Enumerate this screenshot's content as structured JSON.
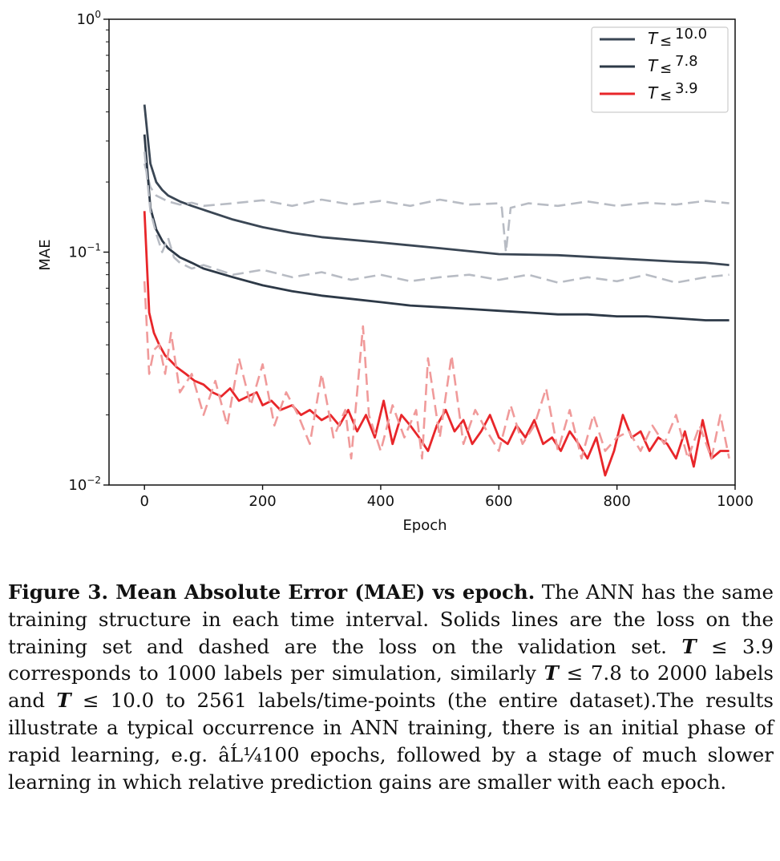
{
  "chart_data": {
    "type": "line",
    "xlabel": "Epoch",
    "ylabel": "MAE",
    "xlim": [
      -60,
      1000
    ],
    "ylim": [
      0.01,
      1.0
    ],
    "yscale": "log",
    "xticks": [
      0,
      200,
      400,
      600,
      800,
      1000
    ],
    "xtick_labels": [
      "0",
      "200",
      "400",
      "600",
      "800",
      "1000"
    ],
    "yticks": [
      {
        "value": 1.0,
        "base": "10",
        "exp": "0"
      },
      {
        "value": 0.1,
        "base": "10",
        "exp": "−1"
      },
      {
        "value": 0.01,
        "base": "10",
        "exp": "−2"
      }
    ],
    "legend": {
      "placement": "top-right",
      "prefix": "T",
      "symbol": "≤",
      "entries": [
        {
          "value": "10.0",
          "color": "#3a4654"
        },
        {
          "value": "7.8",
          "color": "#2d3947"
        },
        {
          "value": "3.9",
          "color": "#e8262a"
        }
      ]
    },
    "series": [
      {
        "style": "solid",
        "color": "#3a4654",
        "x": [
          0,
          10,
          20,
          30,
          40,
          60,
          80,
          100,
          150,
          200,
          250,
          300,
          400,
          500,
          600,
          700,
          800,
          900,
          950,
          990
        ],
        "y": [
          0.43,
          0.24,
          0.2,
          0.185,
          0.175,
          0.165,
          0.158,
          0.152,
          0.138,
          0.128,
          0.121,
          0.116,
          0.11,
          0.104,
          0.098,
          0.097,
          0.094,
          0.091,
          0.09,
          0.088
        ]
      },
      {
        "style": "dashed",
        "color": "#b8bcc4",
        "x": [
          0,
          10,
          20,
          40,
          60,
          80,
          100,
          150,
          200,
          250,
          300,
          350,
          400,
          450,
          500,
          550,
          600,
          605,
          612,
          620,
          650,
          700,
          750,
          800,
          850,
          900,
          950,
          990
        ],
        "y": [
          0.24,
          0.19,
          0.175,
          0.165,
          0.16,
          0.163,
          0.158,
          0.162,
          0.167,
          0.158,
          0.168,
          0.16,
          0.166,
          0.158,
          0.168,
          0.16,
          0.162,
          0.155,
          0.1,
          0.155,
          0.162,
          0.158,
          0.165,
          0.158,
          0.163,
          0.16,
          0.166,
          0.162
        ]
      },
      {
        "style": "solid",
        "color": "#2d3947",
        "x": [
          0,
          10,
          20,
          30,
          40,
          60,
          80,
          100,
          150,
          200,
          250,
          300,
          350,
          400,
          450,
          500,
          550,
          600,
          650,
          700,
          750,
          800,
          850,
          900,
          950,
          990
        ],
        "y": [
          0.32,
          0.155,
          0.125,
          0.112,
          0.104,
          0.095,
          0.09,
          0.085,
          0.078,
          0.072,
          0.068,
          0.065,
          0.063,
          0.061,
          0.059,
          0.058,
          0.057,
          0.056,
          0.055,
          0.054,
          0.054,
          0.053,
          0.053,
          0.052,
          0.051,
          0.051
        ]
      },
      {
        "style": "dashed",
        "color": "#b8bcc4",
        "x": [
          0,
          10,
          20,
          30,
          40,
          50,
          60,
          80,
          100,
          150,
          200,
          250,
          300,
          350,
          400,
          450,
          500,
          550,
          600,
          650,
          700,
          750,
          800,
          850,
          900,
          950,
          990
        ],
        "y": [
          0.27,
          0.15,
          0.12,
          0.1,
          0.115,
          0.095,
          0.09,
          0.085,
          0.088,
          0.08,
          0.084,
          0.078,
          0.082,
          0.076,
          0.08,
          0.075,
          0.078,
          0.08,
          0.076,
          0.08,
          0.074,
          0.078,
          0.075,
          0.08,
          0.074,
          0.078,
          0.08
        ]
      },
      {
        "style": "solid",
        "color": "#e8262a",
        "x": [
          0,
          8,
          16,
          25,
          35,
          45,
          55,
          70,
          85,
          100,
          115,
          130,
          145,
          160,
          175,
          190,
          200,
          215,
          230,
          250,
          265,
          280,
          300,
          315,
          330,
          345,
          360,
          375,
          390,
          405,
          420,
          435,
          450,
          465,
          480,
          495,
          510,
          525,
          540,
          555,
          570,
          585,
          600,
          615,
          630,
          645,
          660,
          675,
          690,
          705,
          720,
          735,
          750,
          765,
          780,
          795,
          810,
          825,
          840,
          855,
          870,
          885,
          900,
          915,
          930,
          945,
          960,
          975,
          990
        ],
        "y": [
          0.15,
          0.055,
          0.045,
          0.04,
          0.036,
          0.034,
          0.032,
          0.03,
          0.028,
          0.027,
          0.025,
          0.024,
          0.026,
          0.023,
          0.024,
          0.025,
          0.022,
          0.023,
          0.021,
          0.022,
          0.02,
          0.021,
          0.019,
          0.02,
          0.018,
          0.021,
          0.017,
          0.02,
          0.016,
          0.023,
          0.015,
          0.02,
          0.018,
          0.016,
          0.014,
          0.018,
          0.021,
          0.017,
          0.019,
          0.015,
          0.017,
          0.02,
          0.016,
          0.015,
          0.018,
          0.016,
          0.019,
          0.015,
          0.016,
          0.014,
          0.017,
          0.015,
          0.013,
          0.016,
          0.011,
          0.014,
          0.02,
          0.016,
          0.017,
          0.014,
          0.016,
          0.015,
          0.013,
          0.017,
          0.012,
          0.019,
          0.013,
          0.014,
          0.014
        ]
      },
      {
        "style": "dashed",
        "color": "#f09a9a",
        "x": [
          0,
          8,
          16,
          25,
          35,
          45,
          60,
          80,
          100,
          120,
          140,
          160,
          180,
          200,
          220,
          240,
          260,
          280,
          300,
          320,
          340,
          350,
          360,
          370,
          380,
          400,
          420,
          440,
          460,
          470,
          480,
          500,
          520,
          540,
          560,
          580,
          600,
          620,
          640,
          660,
          680,
          700,
          720,
          740,
          760,
          780,
          800,
          820,
          840,
          860,
          880,
          900,
          920,
          940,
          960,
          975,
          990
        ],
        "y": [
          0.075,
          0.03,
          0.038,
          0.04,
          0.03,
          0.045,
          0.025,
          0.03,
          0.02,
          0.028,
          0.018,
          0.035,
          0.022,
          0.033,
          0.018,
          0.025,
          0.02,
          0.015,
          0.03,
          0.016,
          0.021,
          0.013,
          0.025,
          0.048,
          0.02,
          0.014,
          0.022,
          0.016,
          0.021,
          0.013,
          0.035,
          0.016,
          0.036,
          0.015,
          0.021,
          0.017,
          0.014,
          0.022,
          0.015,
          0.018,
          0.026,
          0.014,
          0.021,
          0.013,
          0.02,
          0.014,
          0.016,
          0.017,
          0.014,
          0.018,
          0.015,
          0.02,
          0.013,
          0.018,
          0.013,
          0.02,
          0.013
        ]
      }
    ]
  },
  "caption": {
    "bold": "Figure 3. Mean Absolute Error (MAE) vs epoch.",
    "p1": " The ANN has the same training structure in each time interval. Solids lines are the loss on the training set and dashed are the loss on the validation set. ",
    "t1": "T",
    "p2": " ≤ 3.9 corresponds to 1000 labels per simulation, similarly ",
    "t2": "T",
    "p3": " ≤ 7.8 to 2000 labels and ",
    "t3": "T",
    "p4": " ≤ 10.0 to 2561 labels/time-points (the entire dataset).The results illustrate a typical occurrence in ANN training, there is an initial phase of rapid learning, e.g. âĹ¼100 epochs, followed by a stage of much slower learning in which relative prediction gains are smaller with each epoch."
  }
}
